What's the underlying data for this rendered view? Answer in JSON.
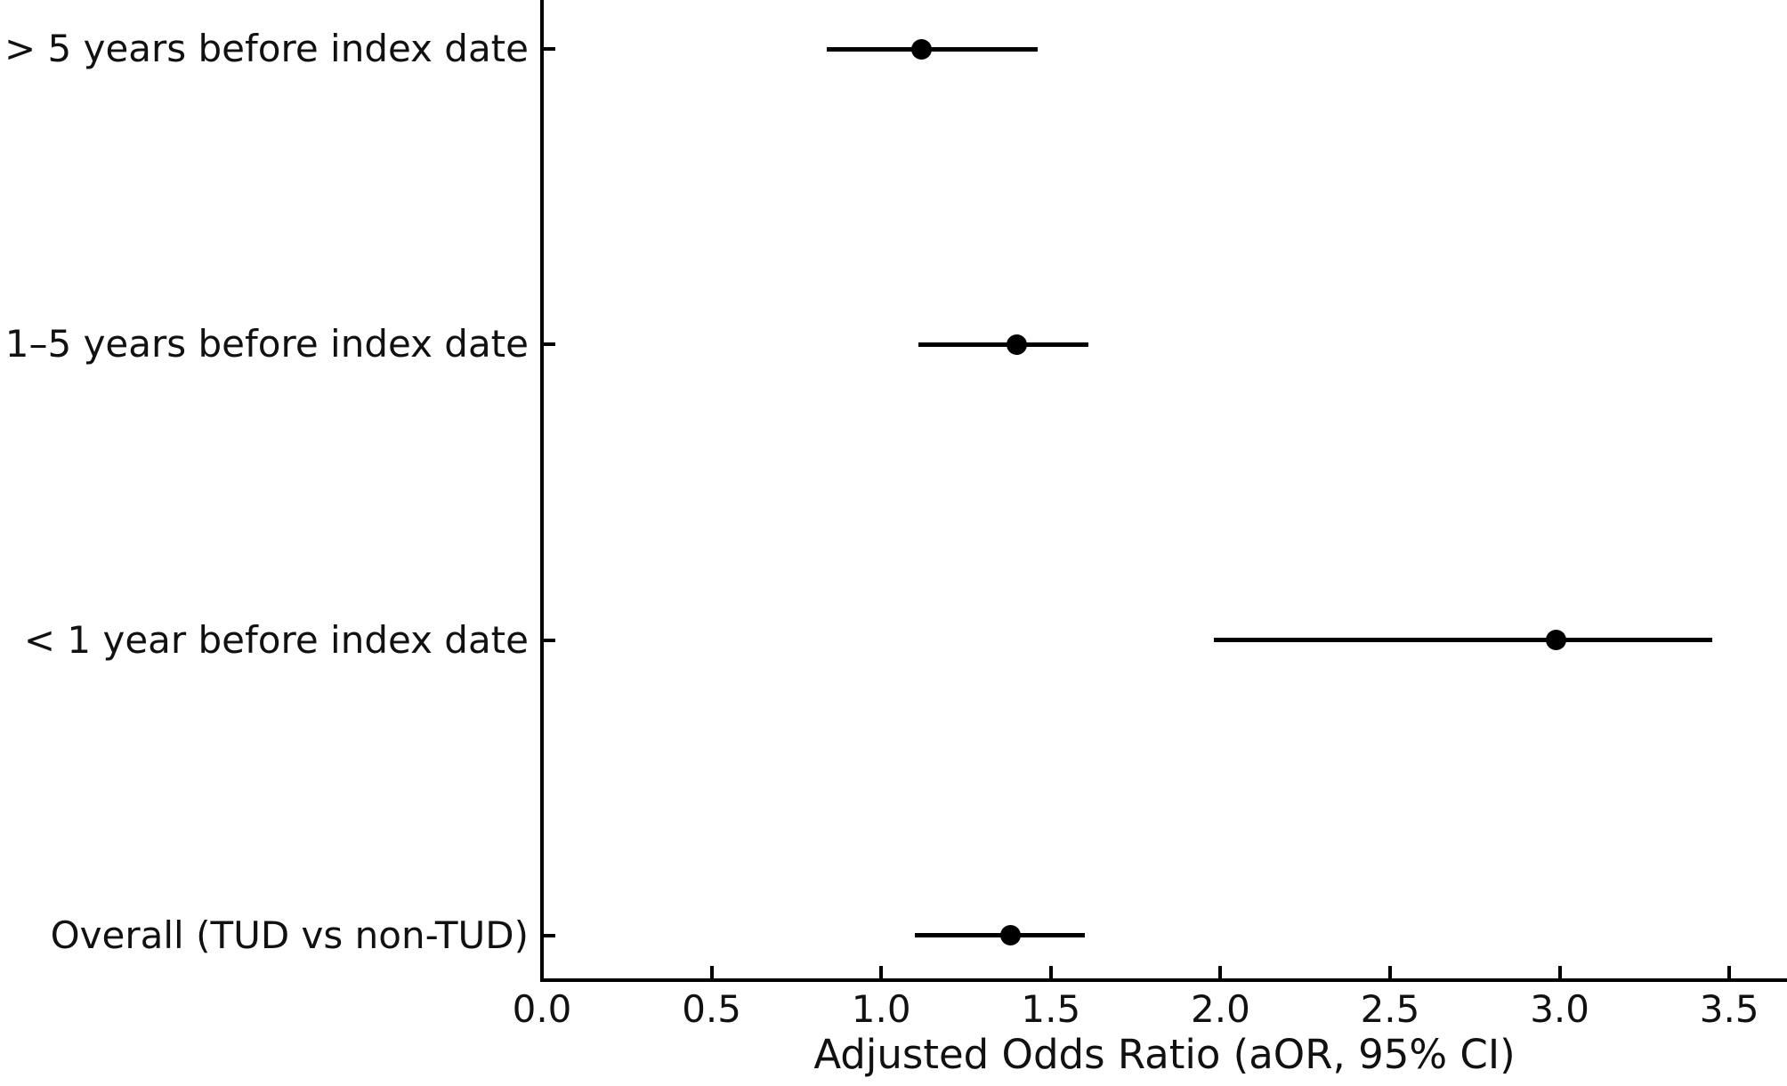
{
  "figure": {
    "background": "#ffffff",
    "ink_color": "#000000",
    "text_color": "#111111"
  },
  "chart_data": {
    "type": "scatter",
    "subtype": "forest-plot",
    "title": "",
    "xlabel": "Adjusted Odds Ratio (aOR, 95% CI)",
    "ylabel": "",
    "xlim": [
      0,
      3.67
    ],
    "grid": false,
    "legend": null,
    "marker_color": "#000000",
    "ci_line_color": "#000000",
    "xticks": [
      0.0,
      0.5,
      1.0,
      1.5,
      2.0,
      2.5,
      3.0,
      3.5
    ],
    "xtick_labels": [
      "0.0",
      "0.5",
      "1.0",
      "1.5",
      "2.0",
      "2.5",
      "3.0",
      "3.5"
    ],
    "rows": [
      {
        "label": "> 5 years before index date",
        "or": 1.12,
        "ci_low": 0.84,
        "ci_high": 1.46
      },
      {
        "label": "1–5 years before index date",
        "or": 1.4,
        "ci_low": 1.11,
        "ci_high": 1.61
      },
      {
        "label": "< 1 year before index date",
        "or": 2.99,
        "ci_low": 1.98,
        "ci_high": 3.45
      },
      {
        "label": "Overall (TUD vs non-TUD)",
        "or": 1.38,
        "ci_low": 1.1,
        "ci_high": 1.6
      }
    ]
  }
}
